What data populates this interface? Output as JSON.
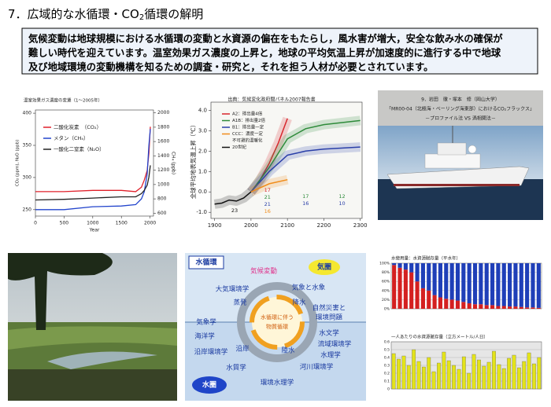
{
  "title": {
    "main": "7．広域的な水循環・CO",
    "sub": "2",
    "rest": "循環の解明"
  },
  "summary": [
    "気候変動は地球規模における水循環の変動と水資源の偏在をもたらし，風水害が増大，安全な飲み水の確保が",
    "難しい時代を迎えています。温室効果ガス濃度の上昇と，地球の平均気温上昇が加速度的に進行する中で地球",
    "及び地域環境の変動機構を知るための調査・研究と，それを担う人材が必要とされています。"
  ],
  "ghg_chart": {
    "type": "line",
    "title": "温室効果ガス濃度の変遷（1～2005年）",
    "xlabel": "Year",
    "ylabel": "CO₂ (ppm), N₂O (ppb)",
    "y2label": "CH₄ (ppb)",
    "x": [
      0,
      500,
      1000,
      1500,
      1750,
      1850,
      1900,
      1950,
      1980,
      2005
    ],
    "xlim": [
      0,
      2060
    ],
    "xticks": [
      0,
      500,
      1000,
      1500,
      2000
    ],
    "ylim": [
      240,
      405
    ],
    "yticks": [
      250,
      300,
      350,
      400
    ],
    "y2lim": [
      560,
      2040
    ],
    "y2ticks": [
      600,
      800,
      1000,
      1200,
      1400,
      1600,
      1800,
      2000
    ],
    "legend": "upper left",
    "series": [
      {
        "name": "二酸化炭素　（CO₂）",
        "color": "#e0202a",
        "values": [
          278,
          278,
          280,
          280,
          278,
          285,
          296,
          311,
          338,
          379
        ]
      },
      {
        "name": "メタン（CH₄）",
        "color": "#2244cc",
        "axis": "y2",
        "values": [
          650,
          650,
          690,
          700,
          720,
          800,
          900,
          1150,
          1550,
          1775
        ]
      },
      {
        "name": "一酸化二窒素（N₂O）",
        "color": "#222222",
        "values": [
          265,
          266,
          268,
          270,
          270,
          275,
          280,
          288,
          301,
          319
        ]
      }
    ]
  },
  "projection_chart": {
    "type": "line",
    "title": "出典：気候変化政府間パネル2007報告書",
    "ylabel": "全球平均地表気温上昇（℃）",
    "xlim": [
      1890,
      2305
    ],
    "xticks": [
      1900,
      2000,
      2100,
      2200,
      2300
    ],
    "ylim": [
      -1.3,
      4.4
    ],
    "yticks": [
      {
        "value": -1,
        "label": "-1.0"
      },
      {
        "value": 0,
        "label": "0.0"
      },
      {
        "value": 1,
        "label": "1.0"
      },
      {
        "value": 2,
        "label": "2.0"
      },
      {
        "value": 3,
        "label": "3.0"
      },
      {
        "value": 4,
        "label": "4.0"
      }
    ],
    "legend": "upper left",
    "series": [
      {
        "name": "A2：排出量4倍",
        "color": "#d8262c",
        "x": [
          2000,
          2025,
          2050,
          2075,
          2100
        ],
        "values": [
          0,
          0.6,
          1.4,
          2.4,
          3.6
        ]
      },
      {
        "name": "A1B：排出量2倍",
        "color": "#2e8b3a",
        "x": [
          2000,
          2025,
          2050,
          2075,
          2100,
          2150,
          2200,
          2300
        ],
        "values": [
          0,
          0.6,
          1.2,
          1.9,
          2.6,
          3.1,
          3.3,
          3.5
        ]
      },
      {
        "name": "B1：排出量一定",
        "color": "#2a3fa8",
        "x": [
          2000,
          2025,
          2050,
          2075,
          2100,
          2150,
          2200,
          2300
        ],
        "values": [
          0,
          0.5,
          1,
          1.4,
          1.8,
          2,
          2.1,
          2.2
        ]
      },
      {
        "name": "CCC：濃度一定",
        "color": "#f08c1a",
        "x": [
          2000,
          2050,
          2100
        ],
        "values": [
          0,
          0.4,
          0.6
        ]
      },
      {
        "name": "不可避的温暖化"
      },
      {
        "name": "20世紀",
        "color": "#111111",
        "x": [
          1900,
          1920,
          1940,
          1960,
          1980,
          2000
        ],
        "values": [
          -0.6,
          -0.55,
          -0.4,
          -0.45,
          -0.3,
          0
        ]
      }
    ],
    "model_counts": [
      [
        "17",
        "21",
        "21",
        "16"
      ],
      [
        "17",
        "16"
      ],
      [
        "12",
        "10"
      ],
      [
        "23"
      ]
    ]
  },
  "ship_caption": [
    "9．岩田　徹・塚本　修（岡山大学）",
    "「MR00-04（北極海・ベーリング海東部）におけるCO₂フラックス」",
    "－プロファイル法 VS 渦相関法－"
  ],
  "diagram": {
    "labels": [
      "水循環",
      "気圏",
      "水圏",
      "気候変動",
      "大気環境学",
      "気象と水象",
      "蒸発",
      "降水",
      "自然災害と",
      "環境問題",
      "気象学",
      "海洋学",
      "沿岸環境学",
      "沿岸",
      "陸水",
      "水文学",
      "流域環境学",
      "水理学",
      "河川環境学",
      "水質学",
      "環境水理学",
      "水循環に伴う",
      "物質循環"
    ]
  },
  "water_use_chart": {
    "type": "bar",
    "title": "水使用量：水資源賦存量（平水年）",
    "ylim": [
      0,
      100
    ],
    "yticks": [
      {
        "value": 0,
        "label": "0%"
      },
      {
        "value": 20,
        "label": "20%"
      },
      {
        "value": 40,
        "label": "40%"
      },
      {
        "value": 60,
        "label": "60%"
      },
      {
        "value": 80,
        "label": "80%"
      },
      {
        "value": 100,
        "label": "100%"
      }
    ],
    "series": [
      {
        "color": "#d42020",
        "values": [
          96,
          90,
          86,
          80,
          60,
          45,
          40,
          30,
          25,
          22,
          20,
          18,
          15,
          12,
          10,
          10,
          8,
          8,
          6,
          6,
          5,
          5,
          4,
          3,
          3,
          2
        ]
      },
      {
        "color": "#1f3fb8",
        "values": [
          4,
          10,
          14,
          20,
          40,
          55,
          60,
          70,
          75,
          78,
          80,
          82,
          85,
          88,
          90,
          90,
          92,
          92,
          94,
          94,
          95,
          95,
          96,
          97,
          97,
          98
        ]
      }
    ]
  },
  "per_capita_chart": {
    "type": "bar",
    "title": "一人あたりの水資源賦存量（立方メートル/人日）",
    "ylim": [
      0,
      0.6
    ],
    "yticks": [
      0,
      0.1,
      0.2,
      0.3,
      0.4,
      0.5,
      0.6
    ],
    "color": "#e3e31a",
    "values": [
      0.45,
      0.38,
      0.42,
      0.3,
      0.5,
      0.35,
      0.28,
      0.4,
      0.22,
      0.33,
      0.47,
      0.36,
      0.3,
      0.25,
      0.41,
      0.2,
      0.44,
      0.37,
      0.29,
      0.34,
      0.48,
      0.31,
      0.26,
      0.39,
      0.43,
      0.27,
      0.35,
      0.46,
      0.32,
      0.4
    ]
  }
}
